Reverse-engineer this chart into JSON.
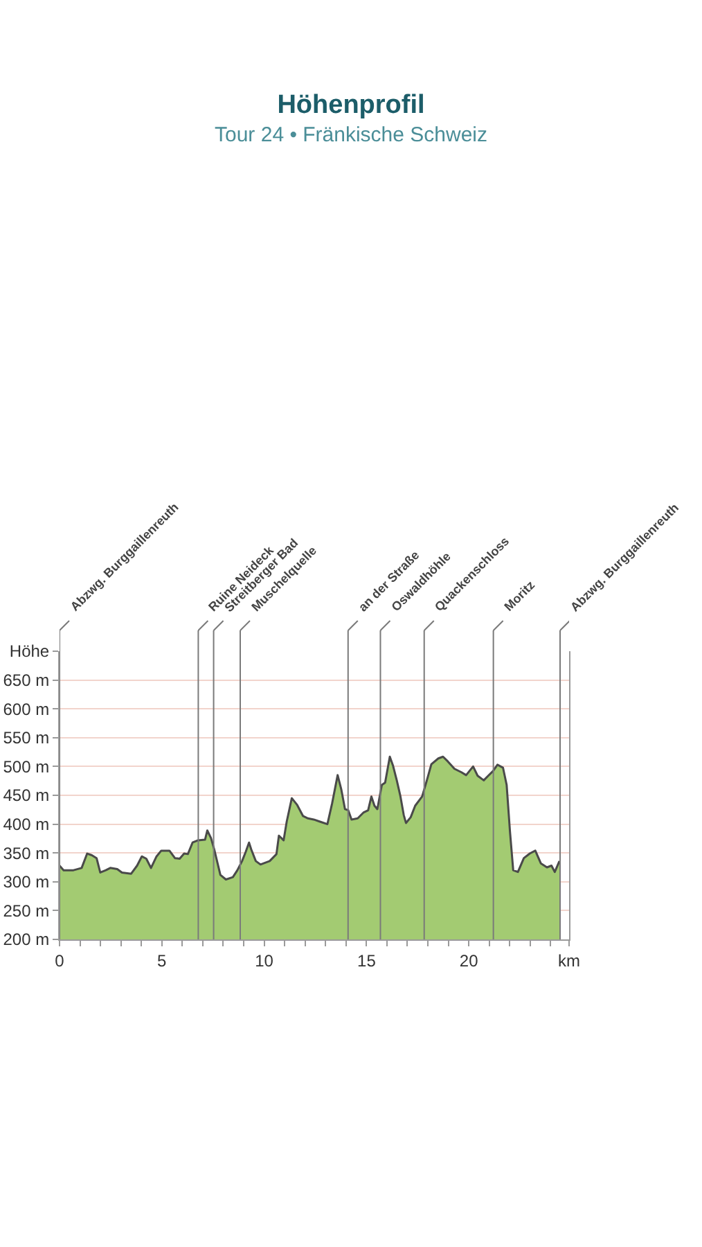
{
  "chart_data": {
    "type": "area",
    "title": "Höhenprofil",
    "subtitle": "Tour 24 • Fränkische Schweiz",
    "x": [
      0,
      0.2,
      0.68,
      1.08,
      1.35,
      1.58,
      1.81,
      1.99,
      2.26,
      2.48,
      2.82,
      3.05,
      3.5,
      3.79,
      4.02,
      4.24,
      4.47,
      4.74,
      4.97,
      5.37,
      5.64,
      5.87,
      6.09,
      6.27,
      6.5,
      6.77,
      7.11,
      7.22,
      7.4,
      7.56,
      7.86,
      8.13,
      8.47,
      8.69,
      8.92,
      9.1,
      9.26,
      9.37,
      9.59,
      9.82,
      10.27,
      10.6,
      10.72,
      10.95,
      11.1,
      11.35,
      11.6,
      11.9,
      12.14,
      12.42,
      12.75,
      13.09,
      13.32,
      13.59,
      13.77,
      13.95,
      14.11,
      14.27,
      14.57,
      14.85,
      15.08,
      15.24,
      15.39,
      15.53,
      15.75,
      15.91,
      16.14,
      16.3,
      16.48,
      16.66,
      16.82,
      16.93,
      17.16,
      17.38,
      17.72,
      17.95,
      18.17,
      18.51,
      18.74,
      18.97,
      19.3,
      19.64,
      19.87,
      20.21,
      20.43,
      20.73,
      20.95,
      21.18,
      21.4,
      21.67,
      21.85,
      22.01,
      22.17,
      22.4,
      22.69,
      22.98,
      23.25,
      23.52,
      23.82,
      24.04,
      24.2,
      24.43
    ],
    "series": [
      {
        "color": "#a3cb72",
        "values": [
          328,
          320,
          320,
          324,
          349,
          346,
          341,
          316,
          320,
          324,
          322,
          316,
          314,
          328,
          344,
          340,
          324,
          344,
          354,
          354,
          341,
          340,
          349,
          348,
          368,
          372,
          373,
          389,
          376,
          356,
          312,
          304,
          308,
          320,
          336,
          352,
          368,
          356,
          336,
          330,
          336,
          348,
          380,
          372,
          404,
          445,
          434,
          414,
          410,
          408,
          404,
          400,
          436,
          485,
          460,
          426,
          424,
          408,
          410,
          420,
          424,
          448,
          432,
          426,
          468,
          472,
          517,
          501,
          476,
          448,
          416,
          402,
          412,
          432,
          448,
          476,
          504,
          514,
          517,
          509,
          496,
          490,
          485,
          500,
          484,
          476,
          484,
          492,
          503,
          498,
          468,
          388,
          320,
          317,
          341,
          349,
          354,
          332,
          325,
          328,
          317,
          336
        ]
      }
    ],
    "xlim": [
      0,
      24.9
    ],
    "xticks": [
      0,
      {
        "value": 1,
        "label": null
      },
      {
        "value": 2,
        "label": null
      },
      {
        "value": 3,
        "label": null
      },
      {
        "value": 4,
        "label": null
      },
      5,
      {
        "value": 6,
        "label": null
      },
      {
        "value": 7,
        "label": null
      },
      {
        "value": 8,
        "label": null
      },
      {
        "value": 9,
        "label": null
      },
      10,
      {
        "value": 11,
        "label": null
      },
      {
        "value": 12,
        "label": null
      },
      {
        "value": 13,
        "label": null
      },
      {
        "value": 14,
        "label": null
      },
      15,
      {
        "value": 16,
        "label": null
      },
      {
        "value": 17,
        "label": null
      },
      {
        "value": 18,
        "label": null
      },
      {
        "value": 19,
        "label": null
      },
      20,
      {
        "value": 21,
        "label": null
      },
      {
        "value": 22,
        "label": null
      },
      {
        "value": 23,
        "label": null
      },
      {
        "value": 24,
        "label": null
      },
      {
        "value": 24.9,
        "label": "km"
      }
    ],
    "ylim": [
      200,
      700
    ],
    "yticks": [
      {
        "value": 200,
        "label": "200 m"
      },
      {
        "value": 250,
        "label": "250 m"
      },
      {
        "value": 300,
        "label": "300 m"
      },
      {
        "value": 350,
        "label": "350 m"
      },
      {
        "value": 400,
        "label": "400 m"
      },
      {
        "value": 450,
        "label": "450 m"
      },
      {
        "value": 500,
        "label": "500 m"
      },
      {
        "value": 550,
        "label": "550 m"
      },
      {
        "value": 600,
        "label": "600 m"
      },
      {
        "value": 650,
        "label": "650 m"
      },
      {
        "value": 700,
        "label": "Höhe"
      }
    ],
    "grid": "y",
    "ref_lines": [
      {
        "axis": "x",
        "value": 0,
        "label": "Abzwg. Burggaillenreuth",
        "color": "#7a7a7a"
      },
      {
        "axis": "x",
        "value": 6.78,
        "label": "Ruine Neideck",
        "color": "#7a7a7a"
      },
      {
        "axis": "x",
        "value": 7.53,
        "label": "Streitberger Bad",
        "color": "#7a7a7a"
      },
      {
        "axis": "x",
        "value": 8.83,
        "label": "Muschelquelle",
        "color": "#7a7a7a"
      },
      {
        "axis": "x",
        "value": 14.1,
        "label": "an der Straße",
        "color": "#7a7a7a"
      },
      {
        "axis": "x",
        "value": 15.68,
        "label": "Oswaldhöhle",
        "color": "#7a7a7a"
      },
      {
        "axis": "x",
        "value": 17.82,
        "label": "Quackenschloss",
        "color": "#7a7a7a"
      },
      {
        "axis": "x",
        "value": 21.2,
        "label": "Moritz",
        "color": "#7a7a7a"
      },
      {
        "axis": "x",
        "value": 24.46,
        "label": "Abzwg. Burggaillenreuth",
        "color": "#7a7a7a"
      }
    ]
  }
}
